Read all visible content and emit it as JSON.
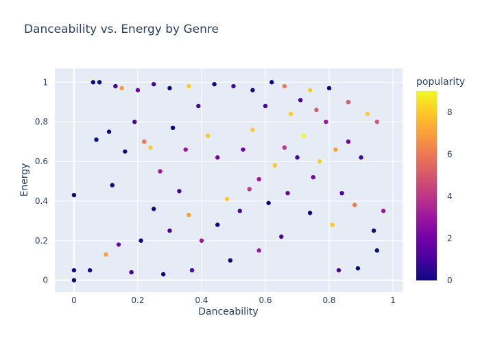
{
  "chart_data": {
    "type": "scatter",
    "title": "Danceability vs. Energy by Genre",
    "xlabel": "Danceability",
    "ylabel": "Energy",
    "xlim": [
      -0.06,
      1.03
    ],
    "ylim": [
      -0.06,
      1.07
    ],
    "xticks": [
      0,
      0.2,
      0.4,
      0.6,
      0.8,
      1
    ],
    "yticks": [
      0,
      0.2,
      0.4,
      0.6,
      0.8,
      1
    ],
    "xtick_labels": [
      "0",
      "0.2",
      "0.4",
      "0.6",
      "0.8",
      "1"
    ],
    "ytick_labels": [
      "0",
      "0.2",
      "0.4",
      "0.6",
      "0.8",
      "1"
    ],
    "grid": true,
    "background": "#e5ecf6",
    "colorbar": {
      "title": "popularity",
      "range": [
        0,
        9
      ],
      "ticks": [
        0,
        2,
        4,
        6,
        8
      ],
      "tick_labels": [
        "0",
        "2",
        "4",
        "6",
        "8"
      ],
      "colorscale": [
        "#0d0887",
        "#46039f",
        "#7201a8",
        "#9c179e",
        "#bd3786",
        "#d8576b",
        "#ed7953",
        "#fb9f3a",
        "#fdca26",
        "#f0f921"
      ]
    },
    "points": [
      {
        "x": 0.0,
        "y": 0.43,
        "c": 0
      },
      {
        "x": 0.0,
        "y": 0.05,
        "c": 0
      },
      {
        "x": 0.0,
        "y": 0.0,
        "c": 0
      },
      {
        "x": 0.06,
        "y": 1.0,
        "c": 0
      },
      {
        "x": 0.08,
        "y": 1.0,
        "c": 0
      },
      {
        "x": 0.13,
        "y": 0.98,
        "c": 1
      },
      {
        "x": 0.15,
        "y": 0.97,
        "c": 7
      },
      {
        "x": 0.2,
        "y": 0.96,
        "c": 2
      },
      {
        "x": 0.25,
        "y": 0.99,
        "c": 1
      },
      {
        "x": 0.3,
        "y": 0.97,
        "c": 0
      },
      {
        "x": 0.36,
        "y": 0.98,
        "c": 8
      },
      {
        "x": 0.44,
        "y": 0.99,
        "c": 0
      },
      {
        "x": 0.5,
        "y": 0.98,
        "c": 1
      },
      {
        "x": 0.56,
        "y": 0.96,
        "c": 0
      },
      {
        "x": 0.62,
        "y": 1.0,
        "c": 0
      },
      {
        "x": 0.66,
        "y": 0.98,
        "c": 6
      },
      {
        "x": 0.74,
        "y": 0.96,
        "c": 8
      },
      {
        "x": 0.8,
        "y": 0.97,
        "c": 0
      },
      {
        "x": 0.86,
        "y": 0.9,
        "c": 5
      },
      {
        "x": 0.92,
        "y": 0.84,
        "c": 8
      },
      {
        "x": 0.95,
        "y": 0.8,
        "c": 5
      },
      {
        "x": 0.97,
        "y": 0.35,
        "c": 3
      },
      {
        "x": 0.94,
        "y": 0.25,
        "c": 0
      },
      {
        "x": 0.95,
        "y": 0.15,
        "c": 0
      },
      {
        "x": 0.89,
        "y": 0.06,
        "c": 0
      },
      {
        "x": 0.83,
        "y": 0.05,
        "c": 1
      },
      {
        "x": 0.1,
        "y": 0.13,
        "c": 7
      },
      {
        "x": 0.07,
        "y": 0.71,
        "c": 0
      },
      {
        "x": 0.05,
        "y": 0.05,
        "c": 0
      },
      {
        "x": 0.11,
        "y": 0.75,
        "c": 0
      },
      {
        "x": 0.12,
        "y": 0.48,
        "c": 0
      },
      {
        "x": 0.16,
        "y": 0.65,
        "c": 0
      },
      {
        "x": 0.19,
        "y": 0.8,
        "c": 1
      },
      {
        "x": 0.22,
        "y": 0.7,
        "c": 6
      },
      {
        "x": 0.24,
        "y": 0.67,
        "c": 8
      },
      {
        "x": 0.27,
        "y": 0.55,
        "c": 3
      },
      {
        "x": 0.33,
        "y": 0.45,
        "c": 1
      },
      {
        "x": 0.36,
        "y": 0.33,
        "c": 7
      },
      {
        "x": 0.42,
        "y": 0.73,
        "c": 8
      },
      {
        "x": 0.45,
        "y": 0.62,
        "c": 2
      },
      {
        "x": 0.48,
        "y": 0.41,
        "c": 8
      },
      {
        "x": 0.53,
        "y": 0.66,
        "c": 2
      },
      {
        "x": 0.56,
        "y": 0.76,
        "c": 8
      },
      {
        "x": 0.58,
        "y": 0.51,
        "c": 3
      },
      {
        "x": 0.6,
        "y": 0.88,
        "c": 1
      },
      {
        "x": 0.63,
        "y": 0.58,
        "c": 8
      },
      {
        "x": 0.66,
        "y": 0.67,
        "c": 4
      },
      {
        "x": 0.68,
        "y": 0.84,
        "c": 8
      },
      {
        "x": 0.7,
        "y": 0.62,
        "c": 1
      },
      {
        "x": 0.72,
        "y": 0.73,
        "c": 9
      },
      {
        "x": 0.75,
        "y": 0.52,
        "c": 2
      },
      {
        "x": 0.77,
        "y": 0.6,
        "c": 8
      },
      {
        "x": 0.79,
        "y": 0.8,
        "c": 3
      },
      {
        "x": 0.82,
        "y": 0.66,
        "c": 7
      },
      {
        "x": 0.84,
        "y": 0.44,
        "c": 1
      },
      {
        "x": 0.86,
        "y": 0.7,
        "c": 2
      },
      {
        "x": 0.88,
        "y": 0.38,
        "c": 6
      },
      {
        "x": 0.9,
        "y": 0.62,
        "c": 1
      },
      {
        "x": 0.81,
        "y": 0.28,
        "c": 8
      },
      {
        "x": 0.74,
        "y": 0.34,
        "c": 0
      },
      {
        "x": 0.65,
        "y": 0.22,
        "c": 1
      },
      {
        "x": 0.58,
        "y": 0.15,
        "c": 3
      },
      {
        "x": 0.49,
        "y": 0.1,
        "c": 0
      },
      {
        "x": 0.37,
        "y": 0.05,
        "c": 1
      },
      {
        "x": 0.28,
        "y": 0.03,
        "c": 0
      },
      {
        "x": 0.18,
        "y": 0.04,
        "c": 1
      },
      {
        "x": 0.21,
        "y": 0.2,
        "c": 0
      },
      {
        "x": 0.14,
        "y": 0.18,
        "c": 2
      },
      {
        "x": 0.3,
        "y": 0.25,
        "c": 1
      },
      {
        "x": 0.25,
        "y": 0.36,
        "c": 0
      },
      {
        "x": 0.4,
        "y": 0.2,
        "c": 3
      },
      {
        "x": 0.45,
        "y": 0.28,
        "c": 0
      },
      {
        "x": 0.52,
        "y": 0.35,
        "c": 1
      },
      {
        "x": 0.55,
        "y": 0.46,
        "c": 4
      },
      {
        "x": 0.61,
        "y": 0.39,
        "c": 0
      },
      {
        "x": 0.67,
        "y": 0.44,
        "c": 2
      },
      {
        "x": 0.71,
        "y": 0.91,
        "c": 1
      },
      {
        "x": 0.76,
        "y": 0.86,
        "c": 5
      },
      {
        "x": 0.39,
        "y": 0.88,
        "c": 1
      },
      {
        "x": 0.31,
        "y": 0.77,
        "c": 0
      },
      {
        "x": 0.35,
        "y": 0.66,
        "c": 3
      }
    ]
  }
}
